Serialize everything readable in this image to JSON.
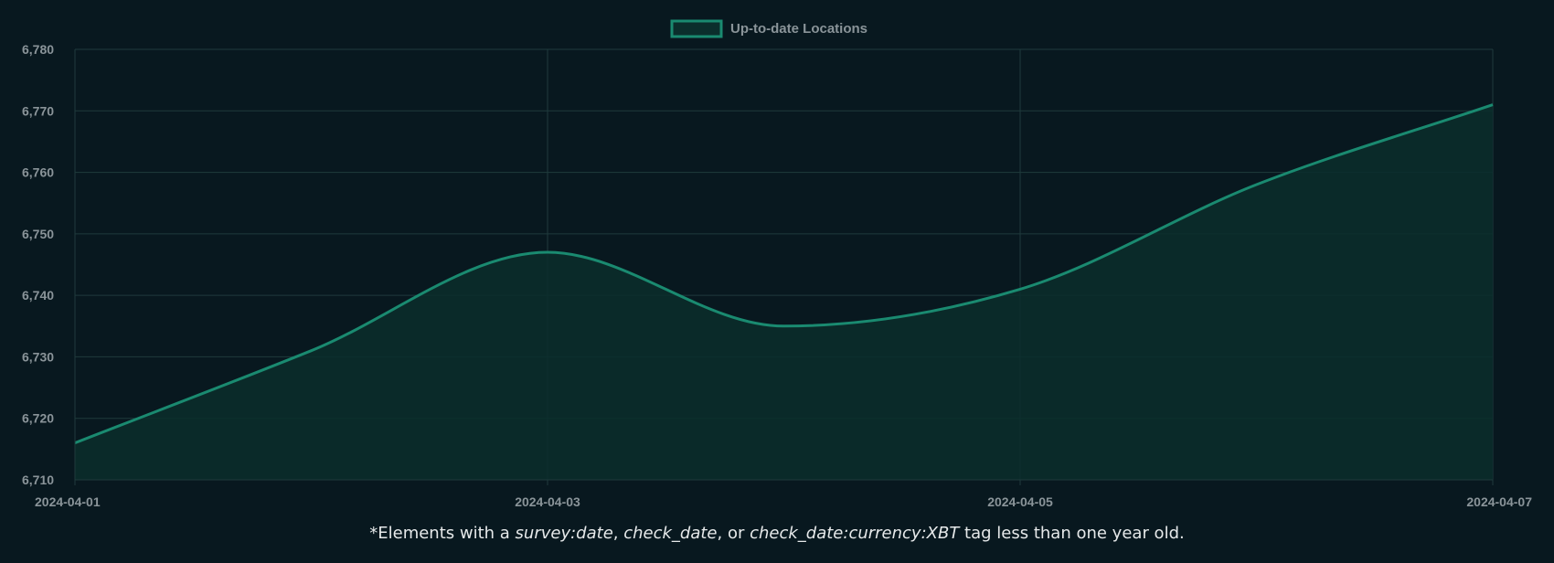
{
  "colors": {
    "background": "#08181f",
    "line": "#1a8a70",
    "fill": "#0b2e2c",
    "grid": "#1f3a3c",
    "tick": "#8a9499",
    "footnote": "#e6e9ea"
  },
  "chart_data": {
    "type": "area",
    "x": [
      "2024-04-01",
      "2024-04-02",
      "2024-04-03",
      "2024-04-04",
      "2024-04-05",
      "2024-04-06",
      "2024-04-07"
    ],
    "series": [
      {
        "name": "Up-to-date Locations",
        "values": [
          6716,
          6731,
          6747,
          6735,
          6741,
          6758,
          6771
        ]
      }
    ],
    "x_ticks": [
      "2024-04-01",
      "2024-04-03",
      "2024-04-05",
      "2024-04-07"
    ],
    "y_ticks": [
      "6,710",
      "6,720",
      "6,730",
      "6,740",
      "6,750",
      "6,760",
      "6,770",
      "6,780"
    ],
    "ylim": [
      6710,
      6780
    ],
    "grid": true,
    "legend_position": "top-center"
  },
  "footnote": {
    "prefix": "*Elements with a ",
    "tag1": "survey:date",
    "sep1": ", ",
    "tag2": "check_date",
    "sep2": ", or ",
    "tag3": "check_date:currency:XBT",
    "suffix": " tag less than one year old."
  }
}
